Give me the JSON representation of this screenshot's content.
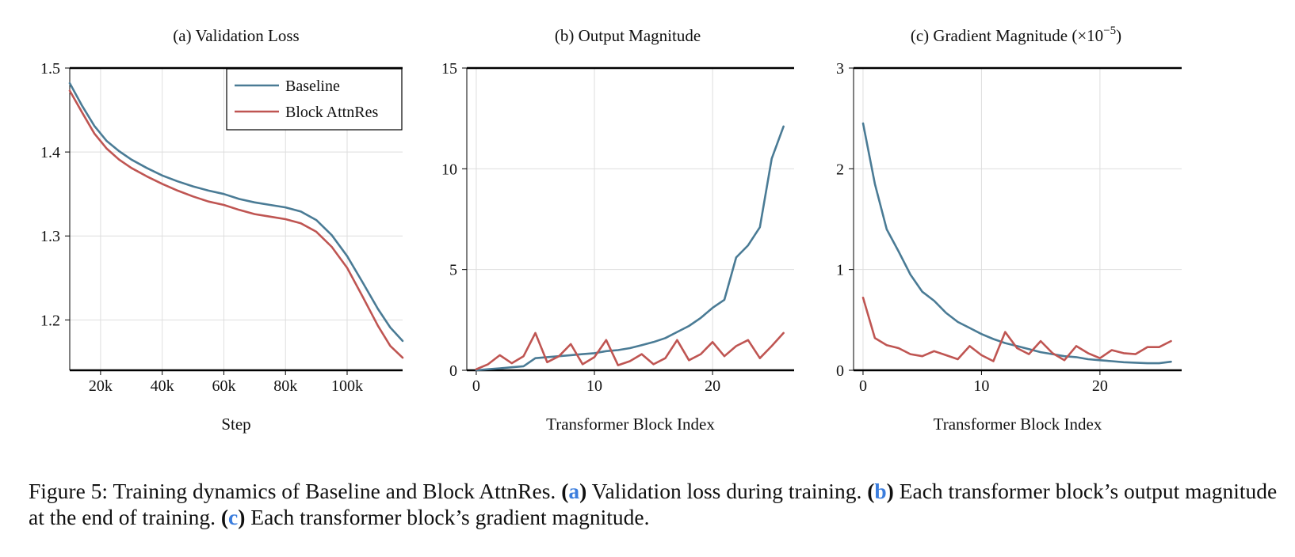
{
  "chart_data": [
    {
      "type": "line",
      "title": "(a) Validation Loss",
      "xlabel": "Step",
      "ylabel": "",
      "xlim": [
        10000,
        118000
      ],
      "ylim": [
        1.14,
        1.5
      ],
      "xticks": [
        20000,
        40000,
        60000,
        80000,
        100000
      ],
      "xtick_labels": [
        "20k",
        "40k",
        "60k",
        "80k",
        "100k"
      ],
      "yticks": [
        1.2,
        1.3,
        1.4,
        1.5
      ],
      "ytick_labels": [
        "1.2",
        "1.3",
        "1.4",
        "1.5"
      ],
      "grid": true,
      "legend": {
        "position": "top-right",
        "entries": [
          "Baseline",
          "Block AttnRes"
        ]
      },
      "series": [
        {
          "name": "Baseline",
          "color": "#4a7b95",
          "x": [
            10000,
            14000,
            18000,
            22000,
            26000,
            30000,
            35000,
            40000,
            45000,
            50000,
            55000,
            60000,
            65000,
            70000,
            75000,
            80000,
            85000,
            90000,
            95000,
            100000,
            105000,
            110000,
            114000,
            118000
          ],
          "y": [
            1.482,
            1.455,
            1.431,
            1.413,
            1.401,
            1.391,
            1.381,
            1.372,
            1.365,
            1.359,
            1.354,
            1.35,
            1.344,
            1.34,
            1.337,
            1.334,
            1.329,
            1.319,
            1.301,
            1.276,
            1.245,
            1.213,
            1.191,
            1.175
          ]
        },
        {
          "name": "Block AttnRes",
          "color": "#bf5552",
          "x": [
            10000,
            14000,
            18000,
            22000,
            26000,
            30000,
            35000,
            40000,
            45000,
            50000,
            55000,
            60000,
            65000,
            70000,
            75000,
            80000,
            85000,
            90000,
            95000,
            100000,
            105000,
            110000,
            114000,
            118000
          ],
          "y": [
            1.473,
            1.447,
            1.422,
            1.404,
            1.391,
            1.381,
            1.371,
            1.362,
            1.354,
            1.347,
            1.341,
            1.337,
            1.331,
            1.326,
            1.323,
            1.32,
            1.315,
            1.305,
            1.287,
            1.262,
            1.228,
            1.193,
            1.169,
            1.155
          ]
        }
      ]
    },
    {
      "type": "line",
      "title": "(b) Output Magnitude",
      "xlabel": "Transformer Block Index",
      "ylabel": "",
      "xlim": [
        -0.8,
        26.9
      ],
      "ylim": [
        0,
        15
      ],
      "xticks": [
        0,
        10,
        20
      ],
      "xtick_labels": [
        "0",
        "10",
        "20"
      ],
      "yticks": [
        0,
        5,
        10,
        15
      ],
      "ytick_labels": [
        "0",
        "5",
        "10",
        "15"
      ],
      "grid": true,
      "series": [
        {
          "name": "Baseline",
          "color": "#4a7b95",
          "x": [
            0,
            1,
            2,
            3,
            4,
            5,
            6,
            7,
            8,
            9,
            10,
            11,
            12,
            13,
            14,
            15,
            16,
            17,
            18,
            19,
            20,
            21,
            22,
            23,
            24,
            25,
            26
          ],
          "y": [
            0.0,
            0.05,
            0.1,
            0.15,
            0.2,
            0.6,
            0.65,
            0.7,
            0.75,
            0.8,
            0.85,
            0.95,
            1.0,
            1.1,
            1.25,
            1.4,
            1.6,
            1.9,
            2.2,
            2.6,
            3.1,
            3.5,
            5.6,
            6.2,
            7.1,
            10.5,
            12.1
          ]
        },
        {
          "name": "Block AttnRes",
          "color": "#bf5552",
          "x": [
            0,
            1,
            2,
            3,
            4,
            5,
            6,
            7,
            8,
            9,
            10,
            11,
            12,
            13,
            14,
            15,
            16,
            17,
            18,
            19,
            20,
            21,
            22,
            23,
            24,
            25,
            26
          ],
          "y": [
            0.05,
            0.3,
            0.75,
            0.35,
            0.7,
            1.85,
            0.4,
            0.7,
            1.3,
            0.3,
            0.65,
            1.5,
            0.25,
            0.45,
            0.8,
            0.3,
            0.6,
            1.5,
            0.5,
            0.8,
            1.4,
            0.7,
            1.2,
            1.5,
            0.6,
            1.2,
            1.85
          ]
        }
      ]
    },
    {
      "type": "line",
      "title": "(c) Gradient Magnitude (×10",
      "title_exponent": "−5",
      "title_suffix": ")",
      "xlabel": "Transformer Block Index",
      "ylabel": "",
      "xlim": [
        -0.8,
        26.9
      ],
      "ylim": [
        0,
        3
      ],
      "xticks": [
        0,
        10,
        20
      ],
      "xtick_labels": [
        "0",
        "10",
        "20"
      ],
      "yticks": [
        0,
        1,
        2,
        3
      ],
      "ytick_labels": [
        "0",
        "1",
        "2",
        "3"
      ],
      "grid": true,
      "series": [
        {
          "name": "Baseline",
          "color": "#4a7b95",
          "x": [
            0,
            1,
            2,
            3,
            4,
            5,
            6,
            7,
            8,
            9,
            10,
            11,
            12,
            13,
            14,
            15,
            16,
            17,
            18,
            19,
            20,
            21,
            22,
            23,
            24,
            25,
            26
          ],
          "y": [
            2.45,
            1.85,
            1.4,
            1.18,
            0.95,
            0.78,
            0.69,
            0.57,
            0.48,
            0.42,
            0.36,
            0.31,
            0.27,
            0.24,
            0.21,
            0.18,
            0.16,
            0.14,
            0.13,
            0.11,
            0.1,
            0.09,
            0.08,
            0.075,
            0.07,
            0.07,
            0.085
          ]
        },
        {
          "name": "Block AttnRes",
          "color": "#bf5552",
          "x": [
            0,
            1,
            2,
            3,
            4,
            5,
            6,
            7,
            8,
            9,
            10,
            11,
            12,
            13,
            14,
            15,
            16,
            17,
            18,
            19,
            20,
            21,
            22,
            23,
            24,
            25,
            26
          ],
          "y": [
            0.72,
            0.32,
            0.25,
            0.22,
            0.16,
            0.14,
            0.19,
            0.15,
            0.11,
            0.24,
            0.15,
            0.09,
            0.38,
            0.22,
            0.16,
            0.29,
            0.17,
            0.1,
            0.24,
            0.17,
            0.12,
            0.2,
            0.17,
            0.16,
            0.23,
            0.23,
            0.29
          ]
        }
      ]
    }
  ],
  "caption": {
    "prefix": "Figure 5: Training dynamics of Baseline and Block AttnRes. ",
    "a_open": "(",
    "a_letter": "a",
    "a_close": ")",
    "a_text": " Validation loss during training. ",
    "b_open": "(",
    "b_letter": "b",
    "b_close": ")",
    "b_text": " Each transformer block’s output magnitude at the end of training. ",
    "c_open": "(",
    "c_letter": "c",
    "c_close": ")",
    "c_text": " Each transformer block’s gradient magnitude."
  }
}
